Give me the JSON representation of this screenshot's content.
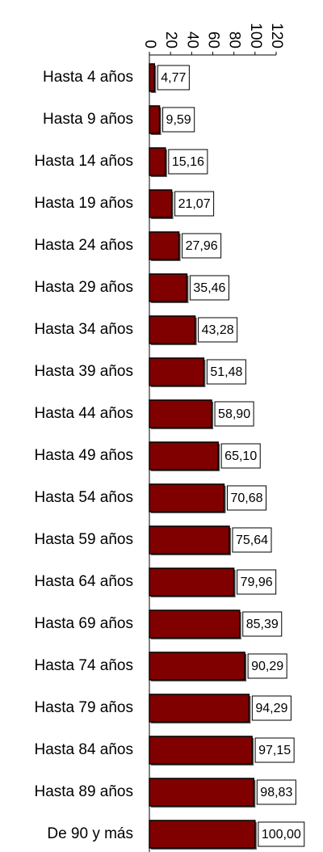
{
  "chart_data": {
    "type": "bar",
    "orientation": "horizontal",
    "categories": [
      "Hasta 4 años",
      "Hasta 9 años",
      "Hasta 14 años",
      "Hasta 19 años",
      "Hasta 24 años",
      "Hasta 29 años",
      "Hasta 34 años",
      "Hasta 39 años",
      "Hasta 44 años",
      "Hasta 49 años",
      "Hasta 54 años",
      "Hasta 59 años",
      "Hasta 64 años",
      "Hasta 69 años",
      "Hasta 74 años",
      "Hasta 79 años",
      "Hasta 84 años",
      "Hasta 89 años",
      "De 90 y más"
    ],
    "values": [
      4.77,
      9.59,
      15.16,
      21.07,
      27.96,
      35.46,
      43.28,
      51.48,
      58.9,
      65.1,
      70.68,
      75.64,
      79.96,
      85.39,
      90.29,
      94.29,
      97.15,
      98.83,
      100.0
    ],
    "value_labels": [
      "4,77",
      "9,59",
      "15,16",
      "21,07",
      "27,96",
      "35,46",
      "43,28",
      "51,48",
      "58,90",
      "65,10",
      "70,68",
      "75,64",
      "79,96",
      "85,39",
      "90,29",
      "94,29",
      "97,15",
      "98,83",
      "100,00"
    ],
    "color": "#800000",
    "xlim": [
      0,
      120
    ],
    "xticks": [
      0,
      20,
      40,
      60,
      80,
      100,
      120
    ]
  }
}
